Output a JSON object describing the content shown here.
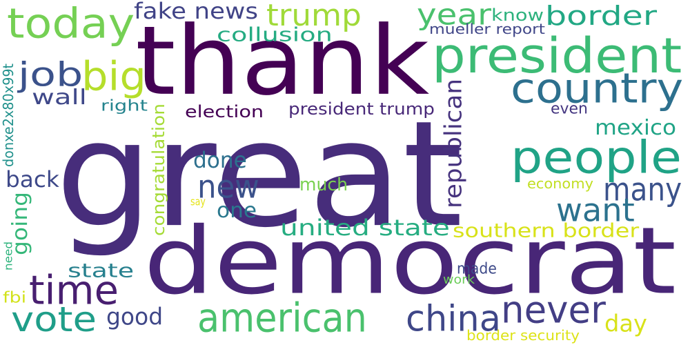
{
  "words": [
    {
      "text": "great",
      "color": "#472d7b"
    },
    {
      "text": "thank",
      "color": "#440154"
    },
    {
      "text": "democrat",
      "color": "#482677"
    },
    {
      "text": "president",
      "color": "#3cbb75"
    },
    {
      "text": "today",
      "color": "#75d054"
    },
    {
      "text": "country",
      "color": "#2d708e"
    },
    {
      "text": "people",
      "color": "#20a386"
    },
    {
      "text": "american",
      "color": "#4ac16d"
    },
    {
      "text": "never",
      "color": "#433e85"
    },
    {
      "text": "china",
      "color": "#3f4788"
    },
    {
      "text": "time",
      "color": "#481f70"
    },
    {
      "text": "vote",
      "color": "#1f9e89"
    },
    {
      "text": "new",
      "color": "#3b528b"
    },
    {
      "text": "many",
      "color": "#3b528b"
    },
    {
      "text": "want",
      "color": "#2c728e"
    },
    {
      "text": "big",
      "color": "#b5de2b"
    },
    {
      "text": "job",
      "color": "#3b528b"
    },
    {
      "text": "trump",
      "color": "#a0da39"
    },
    {
      "text": "year",
      "color": "#4ac16d"
    },
    {
      "text": "border",
      "color": "#22a884"
    },
    {
      "text": "republican",
      "color": "#46337e"
    },
    {
      "text": "united state",
      "color": "#26ad81"
    },
    {
      "text": "southern border",
      "color": "#d8e219"
    },
    {
      "text": "good",
      "color": "#3f4788"
    },
    {
      "text": "day",
      "color": "#d8e219"
    },
    {
      "text": "done",
      "color": "#2d708e"
    },
    {
      "text": "back",
      "color": "#3e4989"
    },
    {
      "text": "going",
      "color": "#35b779"
    },
    {
      "text": "fake news",
      "color": "#414487"
    },
    {
      "text": "collusion",
      "color": "#25ab82"
    },
    {
      "text": "wall",
      "color": "#3f4889"
    },
    {
      "text": "one",
      "color": "#2a788e"
    },
    {
      "text": "much",
      "color": "#7ad151"
    },
    {
      "text": "state",
      "color": "#27808e"
    },
    {
      "text": "mexico",
      "color": "#20a486"
    },
    {
      "text": "election",
      "color": "#440154"
    },
    {
      "text": "president trump",
      "color": "#482878"
    },
    {
      "text": "congratulation",
      "color": "#a5db36"
    },
    {
      "text": "donxe2x80x99t",
      "color": "#21918c"
    },
    {
      "text": "right",
      "color": "#25848e"
    },
    {
      "text": "even",
      "color": "#453781"
    },
    {
      "text": "know",
      "color": "#2db27d"
    },
    {
      "text": "mueller report",
      "color": "#404688"
    },
    {
      "text": "made",
      "color": "#3e4a89"
    },
    {
      "text": "economy",
      "color": "#c2df23"
    },
    {
      "text": "work",
      "color": "#6ccd5a"
    },
    {
      "text": "say",
      "color": "#e5e419"
    },
    {
      "text": "need",
      "color": "#2eb37c"
    },
    {
      "text": "fbi",
      "color": "#d2e21b"
    },
    {
      "text": "border security",
      "color": "#dde318"
    }
  ]
}
